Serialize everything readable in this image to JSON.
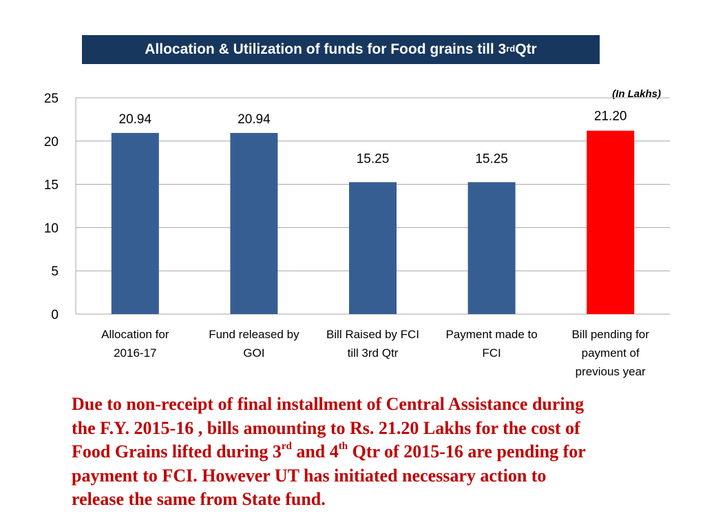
{
  "title": {
    "text_before": "Allocation & Utilization of funds for Food grains till 3",
    "sup": "rd",
    "text_after": " Qtr"
  },
  "unit_note": "(In Lakhs)",
  "chart_data": {
    "type": "bar",
    "categories": [
      [
        "Allocation for",
        "2016-17"
      ],
      [
        "Fund released by",
        "GOI"
      ],
      [
        "Bill Raised by FCI",
        "till 3rd Qtr"
      ],
      [
        "Payment made to",
        "FCI"
      ],
      [
        "Bill pending for",
        "payment of",
        "previous year"
      ]
    ],
    "values": [
      20.94,
      20.94,
      15.25,
      15.25,
      21.2
    ],
    "data_labels": [
      "20.94",
      "20.94",
      "15.25",
      "15.25",
      "21.20"
    ],
    "bar_colors": [
      "#375e93",
      "#375e93",
      "#375e93",
      "#375e93",
      "#ff0000"
    ],
    "ylim": [
      0,
      25
    ],
    "yticks": [
      0,
      5,
      10,
      15,
      20,
      25
    ],
    "grid": true,
    "legend": "none",
    "title": "",
    "xlabel": "",
    "ylabel": ""
  },
  "note": {
    "line1": "Due to non-receipt of final installment of Central Assistance during",
    "line2": "the F.Y. 2015-16 , bills amounting to Rs. 21.20 Lakhs for the cost of",
    "line3_a": "Food Grains lifted during 3",
    "line3_sup1": "rd",
    "line3_b": " and 4",
    "line3_sup2": "th",
    "line3_c": " Qtr of 2015-16 are pending for",
    "line4": "payment to FCI. However UT has initiated necessary action to",
    "line5": "release the same from State fund."
  },
  "colors": {
    "banner": "#17375e",
    "bar": "#375e93",
    "highlight_bar": "#ff0000",
    "note_text": "#c00000"
  }
}
